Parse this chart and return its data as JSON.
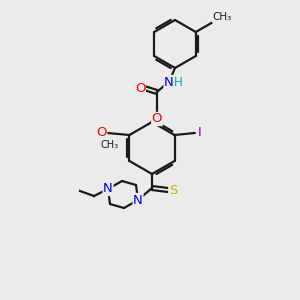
{
  "bg_color": "#ebebeb",
  "bond_color": "#1a1a1a",
  "bond_width": 1.6,
  "atom_colors": {
    "O": "#ff0000",
    "N": "#0000ee",
    "S": "#b8b800",
    "I": "#8800aa",
    "H": "#00aaaa",
    "C": "#1a1a1a"
  },
  "font_size": 9.5
}
